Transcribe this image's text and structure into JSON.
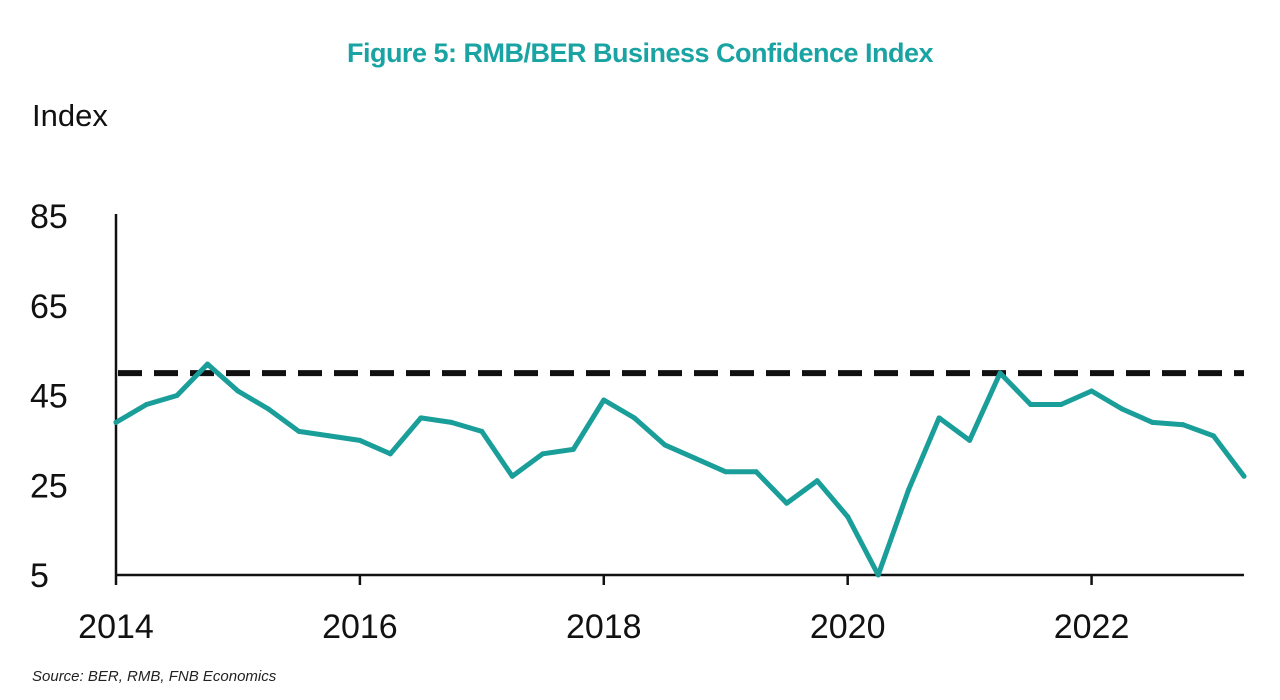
{
  "chart_data": {
    "type": "line",
    "title": "Figure 5: RMB/BER Business Confidence Index",
    "ylabel": "Index",
    "xlabel": "",
    "source": "Source: BER, RMB, FNB Economics",
    "ylim": [
      5,
      85
    ],
    "yticks": [
      85,
      65,
      45,
      25,
      5
    ],
    "xlim": [
      2014.0,
      2023.25
    ],
    "xticks": [
      2014,
      2016,
      2018,
      2020,
      2022
    ],
    "xtick_labels": [
      "2014",
      "2016",
      "2018",
      "2020",
      "2022"
    ],
    "grid": false,
    "legend": "none",
    "reference_line": {
      "y": 50,
      "style": "dashed",
      "color": "#111111"
    },
    "series": [
      {
        "color": "#1a9e9a",
        "x": [
          2014.0,
          2014.25,
          2014.5,
          2014.75,
          2015.0,
          2015.25,
          2015.5,
          2015.75,
          2016.0,
          2016.25,
          2016.5,
          2016.75,
          2017.0,
          2017.25,
          2017.5,
          2017.75,
          2018.0,
          2018.25,
          2018.5,
          2018.75,
          2019.0,
          2019.25,
          2019.5,
          2019.75,
          2020.0,
          2020.25,
          2020.5,
          2020.75,
          2021.0,
          2021.25,
          2021.5,
          2021.75,
          2022.0,
          2022.25,
          2022.5,
          2022.75,
          2023.0,
          2023.25
        ],
        "values": [
          39,
          43,
          45,
          52,
          46,
          42,
          37,
          36,
          35,
          32,
          40,
          39,
          37,
          27,
          32,
          33,
          44,
          40,
          34,
          31,
          28,
          28,
          21,
          26,
          18,
          5,
          24,
          40,
          35,
          50,
          43,
          43,
          46,
          42,
          39,
          38.5,
          36,
          27
        ]
      }
    ]
  }
}
